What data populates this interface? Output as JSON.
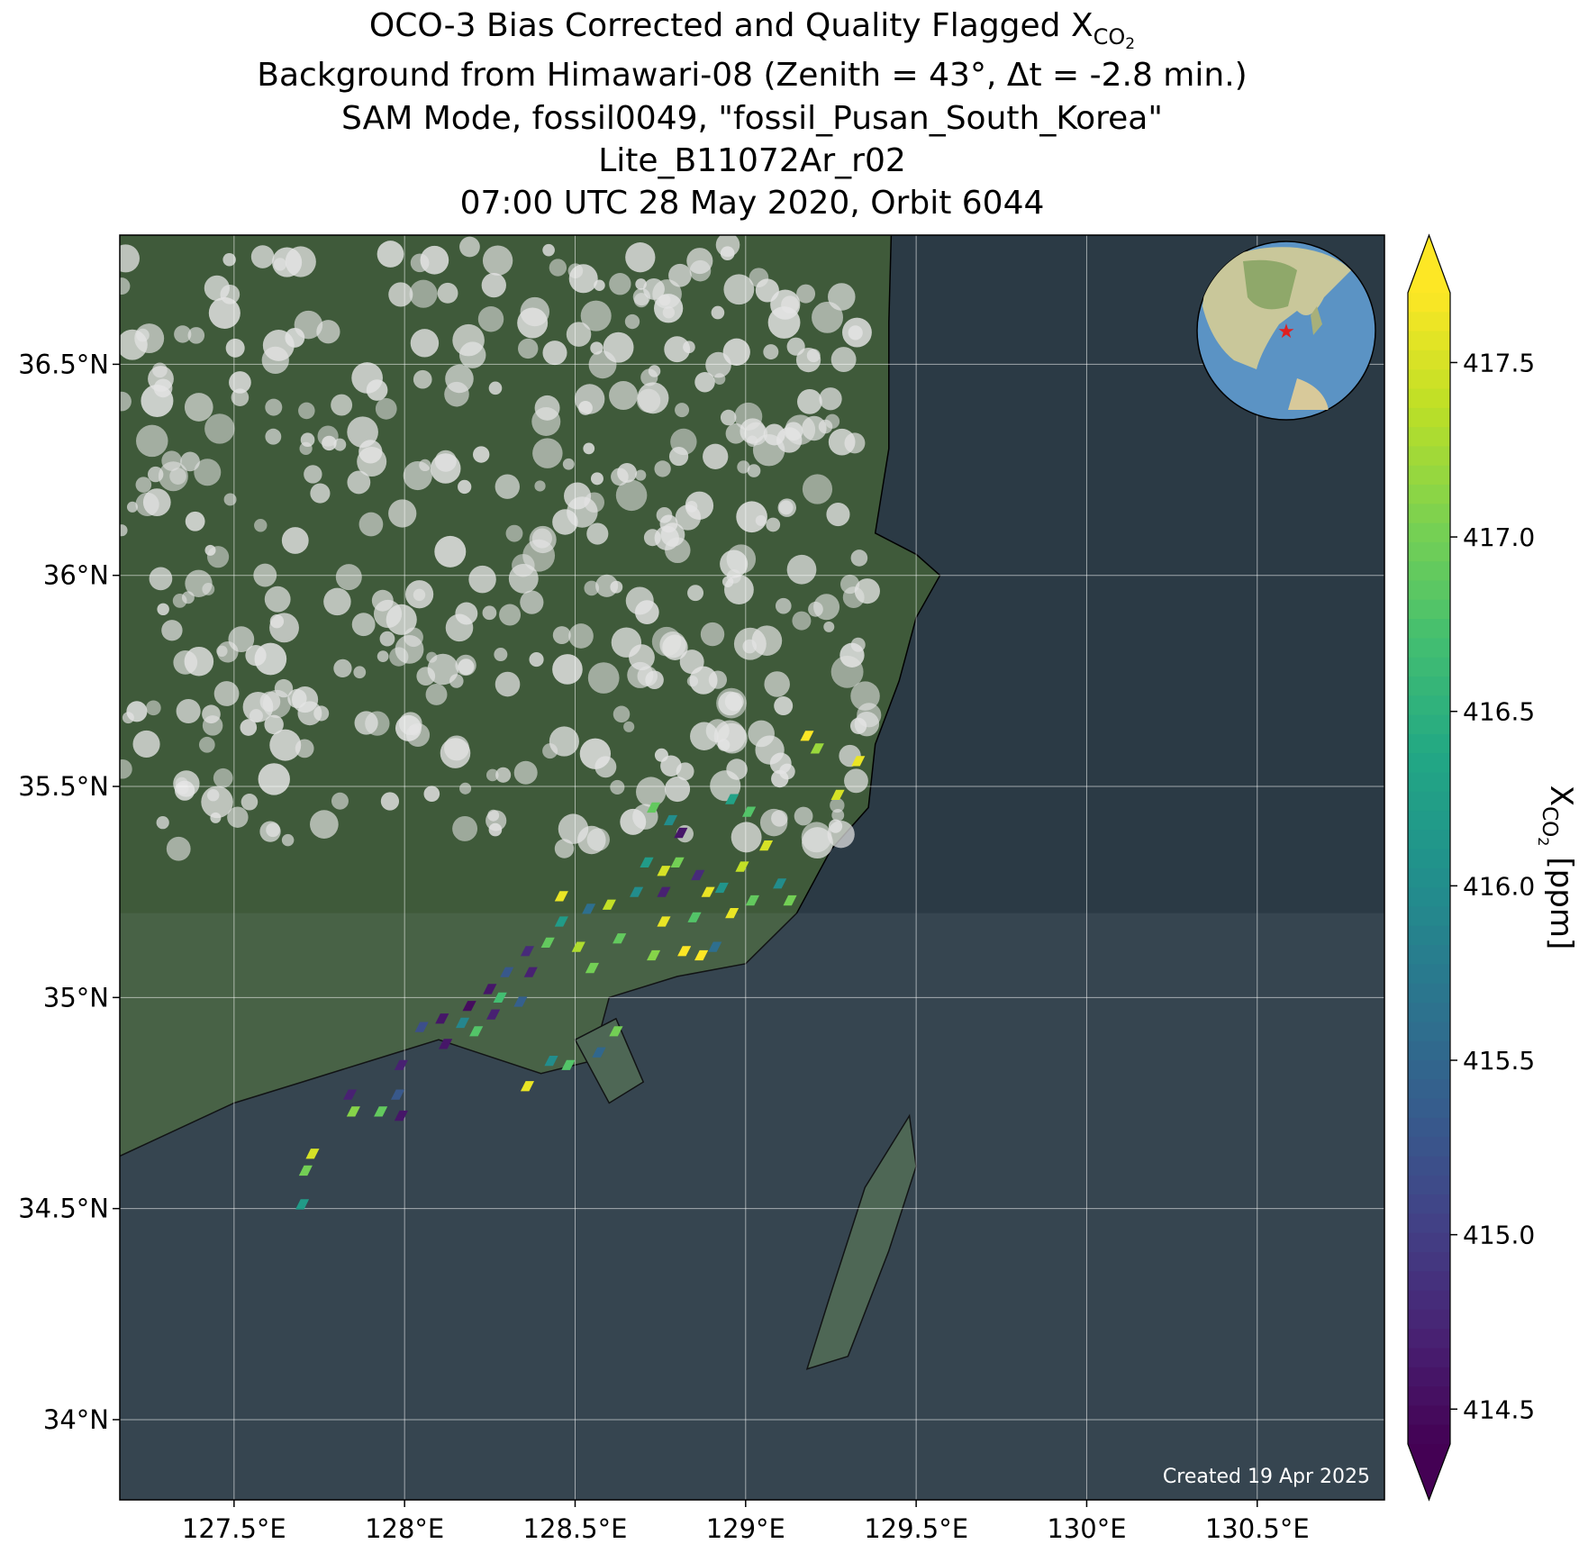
{
  "chart_data": {
    "type": "scatter",
    "title": [
      "OCO-3 Bias Corrected and Quality Flagged X",
      "Background from Himawari-08 (Zenith = 43°, Δt = -2.8 min.)",
      "SAM Mode, fossil0049, \"fossil_Pusan_South_Korea\"",
      "Lite_B11072Ar_r02",
      "07:00 UTC 28 May 2020, Orbit 6044"
    ],
    "symbol_sub": "CO",
    "symbol_subsub": "2",
    "colorbar_label": "X",
    "colorbar_unit": "[ppm]",
    "annotation": "Created 19 Apr 2025",
    "colormap": "viridis",
    "grid": true,
    "xlim": [
      127.165,
      130.873
    ],
    "ylim": [
      33.81,
      36.806
    ],
    "clim": [
      414.4,
      417.7
    ],
    "xticks": [
      {
        "value": 127.5,
        "label": "127.5°E"
      },
      {
        "value": 128,
        "label": "128°E"
      },
      {
        "value": 128.5,
        "label": "128.5°E"
      },
      {
        "value": 129,
        "label": "129°E"
      },
      {
        "value": 129.5,
        "label": "129.5°E"
      },
      {
        "value": 130,
        "label": "130°E"
      },
      {
        "value": 130.5,
        "label": "130.5°E"
      }
    ],
    "yticks": [
      {
        "value": 34,
        "label": "34°N"
      },
      {
        "value": 34.5,
        "label": "34.5°N"
      },
      {
        "value": 35,
        "label": "35°N"
      },
      {
        "value": 35.5,
        "label": "35.5°N"
      },
      {
        "value": 36,
        "label": "36°N"
      },
      {
        "value": 36.5,
        "label": "36.5°N"
      }
    ],
    "cticks": [
      414.5,
      {
        "value": 415,
        "label": "415.0"
      },
      415.5,
      {
        "value": 416,
        "label": "416.0"
      },
      416.5,
      {
        "value": 417,
        "label": "417.0"
      },
      417.5
    ],
    "x": [
      129.18,
      129.33,
      129.21,
      129.27,
      128.96,
      129.01,
      128.73,
      128.81,
      128.78,
      128.71,
      128.76,
      128.8,
      128.76,
      128.86,
      128.89,
      128.93,
      128.99,
      129.06,
      129.1,
      129.02,
      128.96,
      128.85,
      128.76,
      128.82,
      128.87,
      128.91,
      128.73,
      128.68,
      128.6,
      128.54,
      128.46,
      128.46,
      128.42,
      128.51,
      128.55,
      128.36,
      128.3,
      128.25,
      128.19,
      128.11,
      128.05,
      128.17,
      128.26,
      128.34,
      128.37,
      128.28,
      128.12,
      128.21,
      127.99,
      127.98,
      127.93,
      127.99,
      127.85,
      127.84,
      127.73,
      127.71,
      127.7,
      128.36,
      128.48,
      128.57,
      128.62,
      128.43,
      129.13,
      128.63
    ],
    "y": [
      35.62,
      35.56,
      35.59,
      35.48,
      35.47,
      35.44,
      35.45,
      35.39,
      35.42,
      35.32,
      35.3,
      35.32,
      35.25,
      35.29,
      35.25,
      35.26,
      35.31,
      35.36,
      35.27,
      35.23,
      35.2,
      35.19,
      35.18,
      35.11,
      35.1,
      35.12,
      35.1,
      35.25,
      35.22,
      35.21,
      35.24,
      35.18,
      35.13,
      35.12,
      35.07,
      35.11,
      35.06,
      35.02,
      34.98,
      34.95,
      34.93,
      34.94,
      34.96,
      34.99,
      35.06,
      35.0,
      34.89,
      34.92,
      34.84,
      34.77,
      34.73,
      34.72,
      34.73,
      34.77,
      34.63,
      34.59,
      34.51,
      34.79,
      34.84,
      34.87,
      34.92,
      34.85,
      35.23,
      35.14
    ],
    "values": [
      417.7,
      417.6,
      417.2,
      417.5,
      416.3,
      416.8,
      416.9,
      414.6,
      416.0,
      416.2,
      417.5,
      417.0,
      414.7,
      414.8,
      417.6,
      416.1,
      417.4,
      417.5,
      416.0,
      416.9,
      417.6,
      416.8,
      417.6,
      417.7,
      417.7,
      415.6,
      417.1,
      416.0,
      417.4,
      415.6,
      417.6,
      416.2,
      416.9,
      417.3,
      417.0,
      414.8,
      415.3,
      414.6,
      414.5,
      414.6,
      415.2,
      415.9,
      414.7,
      415.4,
      414.7,
      416.7,
      414.6,
      416.8,
      414.7,
      415.3,
      416.9,
      414.6,
      417.1,
      414.7,
      417.5,
      417.0,
      416.2,
      417.6,
      416.8,
      415.5,
      417.0,
      416.0,
      417.0,
      416.9
    ]
  }
}
